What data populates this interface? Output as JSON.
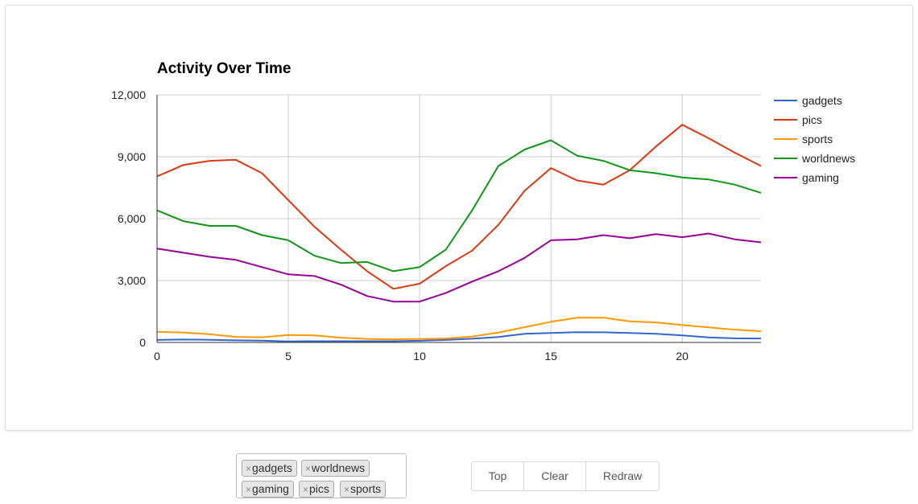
{
  "chart_data": {
    "type": "line",
    "title": "Activity Over Time",
    "xlabel": "",
    "ylabel": "",
    "xlim": [
      0,
      23
    ],
    "ylim": [
      0,
      12000
    ],
    "x_ticks": [
      "0",
      "5",
      "10",
      "15",
      "20"
    ],
    "y_ticks": [
      "0",
      "3,000",
      "6,000",
      "9,000",
      "12,000"
    ],
    "grid": true,
    "legend": "right",
    "x": [
      0,
      1,
      2,
      3,
      4,
      5,
      6,
      7,
      8,
      9,
      10,
      11,
      12,
      13,
      14,
      15,
      16,
      17,
      18,
      19,
      20,
      21,
      22,
      23
    ],
    "series": [
      {
        "name": "gadgets",
        "color": "#3366cc",
        "values": [
          120,
          140,
          130,
          100,
          90,
          50,
          60,
          60,
          60,
          60,
          80,
          120,
          180,
          260,
          420,
          460,
          500,
          490,
          460,
          420,
          340,
          240,
          200,
          190
        ]
      },
      {
        "name": "pics",
        "color": "#dc3912",
        "values": [
          8050,
          8600,
          8800,
          8850,
          8200,
          6900,
          5600,
          4500,
          3450,
          2600,
          2850,
          3700,
          4450,
          5700,
          7350,
          8450,
          7850,
          7650,
          8350,
          9500,
          10550,
          9900,
          9200,
          8550
        ]
      },
      {
        "name": "sports",
        "color": "#ff9900",
        "values": [
          520,
          480,
          400,
          270,
          250,
          360,
          340,
          230,
          170,
          150,
          170,
          190,
          290,
          480,
          740,
          1000,
          1200,
          1200,
          1020,
          970,
          840,
          730,
          620,
          540
        ]
      },
      {
        "name": "worldnews",
        "color": "#109618",
        "values": [
          6400,
          5880,
          5650,
          5650,
          5200,
          4950,
          4200,
          3850,
          3900,
          3450,
          3650,
          4500,
          6400,
          8550,
          9350,
          9800,
          9050,
          8800,
          8350,
          8200,
          8000,
          7900,
          7650,
          7250
        ]
      },
      {
        "name": "gaming",
        "color": "#990099",
        "values": [
          4550,
          4350,
          4150,
          4000,
          3650,
          3300,
          3220,
          2800,
          2250,
          1980,
          1980,
          2400,
          2950,
          3450,
          4100,
          4950,
          5000,
          5200,
          5050,
          5250,
          5100,
          5280,
          5000,
          4850
        ]
      }
    ]
  },
  "tags": {
    "remove_symbol": "×",
    "items": [
      {
        "label": "gadgets"
      },
      {
        "label": "worldnews"
      },
      {
        "label": "gaming"
      },
      {
        "label": "pics"
      },
      {
        "label": "sports"
      }
    ]
  },
  "buttons": {
    "top_label": "Top",
    "clear_label": "Clear",
    "redraw_label": "Redraw"
  }
}
